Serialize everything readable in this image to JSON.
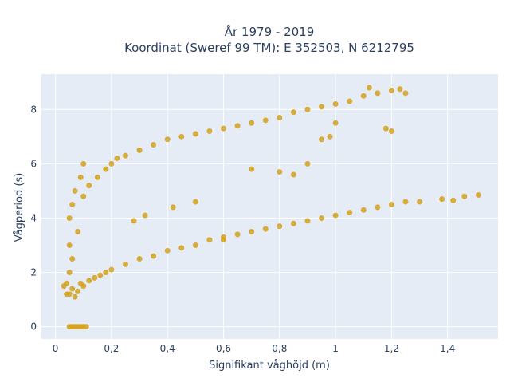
{
  "chart_data": {
    "type": "scatter",
    "title": "År 1979 - 2019",
    "subtitle": "Koordinat (Sweref 99 TM): E 352503, N 6212795",
    "xlabel": "Signifikant våghöjd (m)",
    "ylabel": "Vågperiod (s)",
    "xlim": [
      -0.05,
      1.58
    ],
    "ylim": [
      -0.45,
      9.3
    ],
    "x_ticks": [
      0,
      0.2,
      0.4,
      0.6,
      0.8,
      1,
      1.2,
      1.4
    ],
    "x_tick_labels": [
      "0",
      "0,2",
      "0,4",
      "0,6",
      "0,8",
      "1",
      "1,2",
      "1,4"
    ],
    "y_ticks": [
      0,
      2,
      4,
      6,
      8
    ],
    "y_tick_labels": [
      "0",
      "2",
      "4",
      "6",
      "8"
    ],
    "grid": true,
    "legend": "none",
    "marker_color": "#d4a21c",
    "background_color": "#e5ecf6",
    "series": [
      {
        "points": [
          [
            0.05,
            1.2
          ],
          [
            0.06,
            1.4
          ],
          [
            0.07,
            1.1
          ],
          [
            0.08,
            1.3
          ],
          [
            0.09,
            1.6
          ],
          [
            0.1,
            1.5
          ],
          [
            0.12,
            1.7
          ],
          [
            0.14,
            1.8
          ],
          [
            0.16,
            1.9
          ],
          [
            0.18,
            2.0
          ],
          [
            0.2,
            2.1
          ],
          [
            0.25,
            2.3
          ],
          [
            0.3,
            2.5
          ],
          [
            0.35,
            2.6
          ],
          [
            0.4,
            2.8
          ],
          [
            0.45,
            2.9
          ],
          [
            0.5,
            3.0
          ],
          [
            0.55,
            3.2
          ],
          [
            0.6,
            3.3
          ],
          [
            0.65,
            3.4
          ],
          [
            0.7,
            3.5
          ],
          [
            0.75,
            3.6
          ],
          [
            0.8,
            3.7
          ],
          [
            0.85,
            3.8
          ],
          [
            0.9,
            3.9
          ],
          [
            0.95,
            4.0
          ],
          [
            1.0,
            4.1
          ],
          [
            1.05,
            4.2
          ],
          [
            1.1,
            4.3
          ],
          [
            1.15,
            4.4
          ],
          [
            1.2,
            4.5
          ],
          [
            1.25,
            4.6
          ],
          [
            1.3,
            4.6
          ],
          [
            1.38,
            4.7
          ],
          [
            1.42,
            4.65
          ],
          [
            1.46,
            4.8
          ],
          [
            1.51,
            4.85
          ],
          [
            0.05,
            2.0
          ],
          [
            0.05,
            3.0
          ],
          [
            0.05,
            4.0
          ],
          [
            0.06,
            2.5
          ],
          [
            0.06,
            4.5
          ],
          [
            0.07,
            5.0
          ],
          [
            0.08,
            3.5
          ],
          [
            0.09,
            5.5
          ],
          [
            0.1,
            4.8
          ],
          [
            0.1,
            6.0
          ],
          [
            0.12,
            5.2
          ],
          [
            0.15,
            5.5
          ],
          [
            0.18,
            5.8
          ],
          [
            0.2,
            6.0
          ],
          [
            0.22,
            6.2
          ],
          [
            0.25,
            6.3
          ],
          [
            0.3,
            6.5
          ],
          [
            0.35,
            6.7
          ],
          [
            0.4,
            6.9
          ],
          [
            0.45,
            7.0
          ],
          [
            0.5,
            7.1
          ],
          [
            0.55,
            7.2
          ],
          [
            0.6,
            7.3
          ],
          [
            0.65,
            7.4
          ],
          [
            0.7,
            7.5
          ],
          [
            0.75,
            7.6
          ],
          [
            0.8,
            7.7
          ],
          [
            0.85,
            7.9
          ],
          [
            0.9,
            8.0
          ],
          [
            0.95,
            8.1
          ],
          [
            1.0,
            8.2
          ],
          [
            1.05,
            8.3
          ],
          [
            1.1,
            8.5
          ],
          [
            1.12,
            8.8
          ],
          [
            1.15,
            8.6
          ],
          [
            1.2,
            8.7
          ],
          [
            1.23,
            8.75
          ],
          [
            1.25,
            8.6
          ],
          [
            1.18,
            7.3
          ],
          [
            1.2,
            7.2
          ],
          [
            0.05,
            0
          ],
          [
            0.06,
            0
          ],
          [
            0.07,
            0
          ],
          [
            0.08,
            0
          ],
          [
            0.09,
            0
          ],
          [
            0.1,
            0
          ],
          [
            0.11,
            0
          ],
          [
            0.03,
            1.5
          ],
          [
            0.04,
            1.6
          ],
          [
            0.04,
            1.2
          ],
          [
            0.28,
            3.9
          ],
          [
            0.32,
            4.1
          ],
          [
            0.42,
            4.4
          ],
          [
            0.5,
            4.6
          ],
          [
            0.6,
            3.2
          ],
          [
            0.7,
            5.8
          ],
          [
            0.8,
            5.7
          ],
          [
            0.85,
            5.6
          ],
          [
            0.9,
            6.0
          ],
          [
            0.95,
            6.9
          ],
          [
            0.98,
            7.0
          ],
          [
            1.0,
            7.5
          ]
        ]
      }
    ]
  }
}
